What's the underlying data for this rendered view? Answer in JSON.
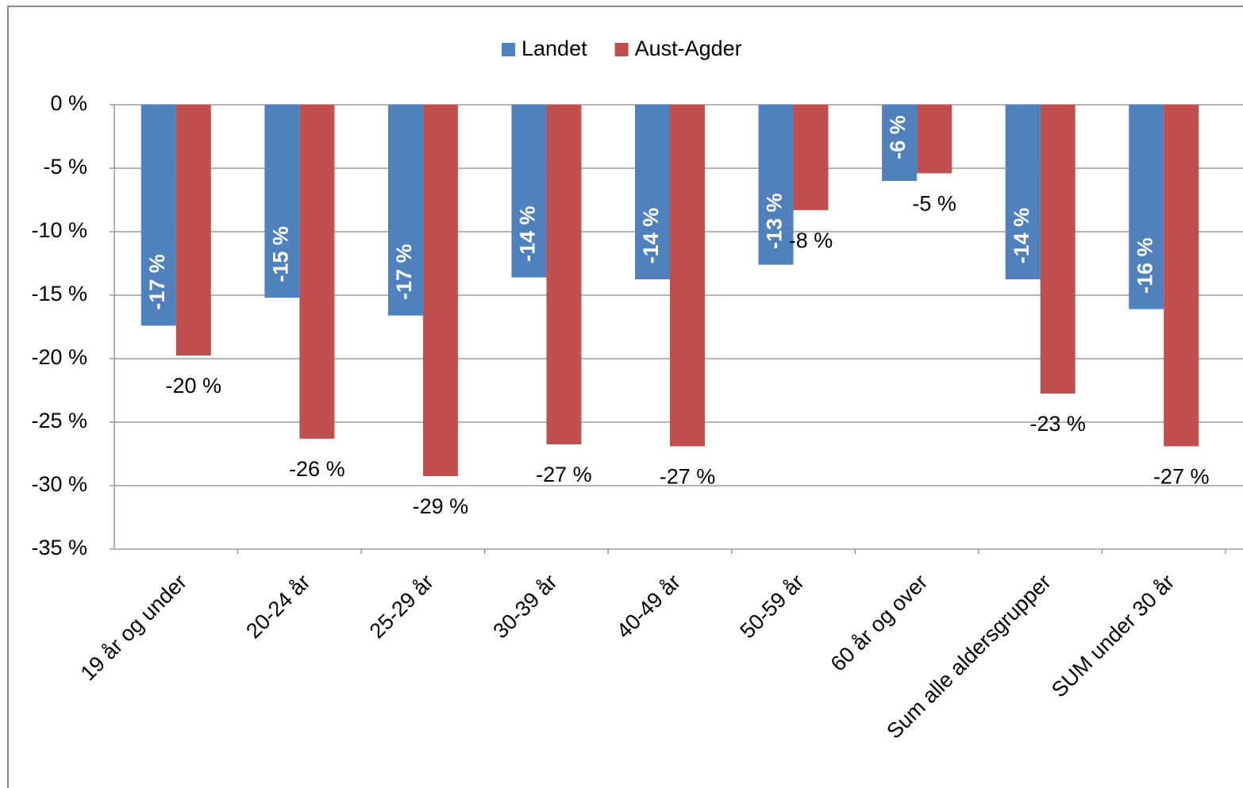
{
  "chart_data": {
    "type": "bar",
    "categories": [
      "19 år og under",
      "20-24 år",
      "25-29 år",
      "30-39 år",
      "40-49 år",
      "50-59 år",
      "60 år og over",
      "Sum alle aldersgrupper",
      "SUM under 30 år"
    ],
    "series": [
      {
        "name": "Landet",
        "color": "#4f81bd",
        "values": [
          -17.4,
          -15.2,
          -16.6,
          -13.6,
          -13.75,
          -12.6,
          -6.0,
          -13.75,
          -16.1
        ],
        "value_labels": [
          "-17 %",
          "-15 %",
          "-17 %",
          "-14 %",
          "-14 %",
          "-13 %",
          "-6 %",
          "-14 %",
          "-16 %"
        ]
      },
      {
        "name": "Aust-Agder",
        "color": "#c0504d",
        "values": [
          -19.75,
          -26.3,
          -29.25,
          -26.75,
          -26.9,
          -8.3,
          -5.4,
          -22.75,
          -26.9
        ],
        "value_labels": [
          "-20 %",
          "-26 %",
          "-29 %",
          "-27 %",
          "-27 %",
          "-8 %",
          "-5 %",
          "-23 %",
          "-27 %"
        ]
      }
    ],
    "ylim": [
      -35,
      0
    ],
    "yticks": [
      {
        "value": 0,
        "label": "0 %"
      },
      {
        "value": -5,
        "label": "-5 %"
      },
      {
        "value": -10,
        "label": "-10 %"
      },
      {
        "value": -15,
        "label": "-15 %"
      },
      {
        "value": -20,
        "label": "-20 %"
      },
      {
        "value": -25,
        "label": "-25 %"
      },
      {
        "value": -30,
        "label": "-30 %"
      },
      {
        "value": -35,
        "label": "-35 %"
      }
    ],
    "grid": true,
    "legend": "top"
  }
}
